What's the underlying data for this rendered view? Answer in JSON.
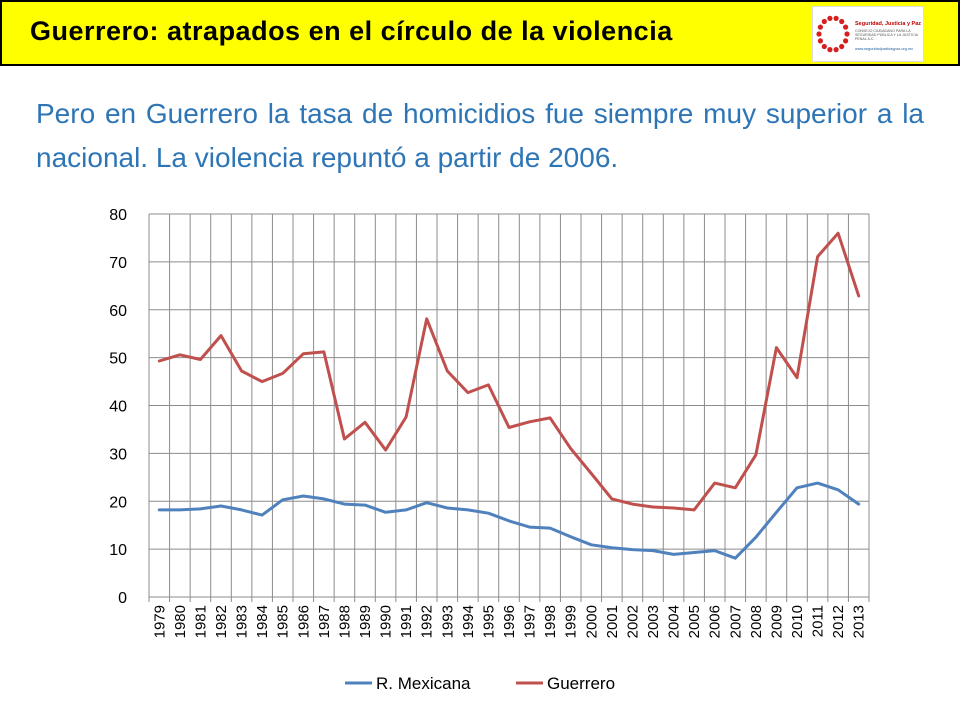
{
  "header": {
    "title": "Guerrero:  atrapados  en  el  círculo  de  la  violencia",
    "logo": {
      "name": "Seguridad, Justicia y Paz",
      "line1": "Seguridad, Justicia y Paz",
      "line2": "CONSEJO CIUDADANO PARA LA SEGURIDAD PÚBLICA Y LA JUSTICIA PENAL A.C.",
      "line3": "www.seguridadjusticiaypaz.org.mx"
    },
    "background_color": "#ffff00"
  },
  "subtitle": "Pero en Guerrero la tasa de homicidios fue siempre muy superior a la nacional. La violencia repuntó a partir de 2006.",
  "chart_data": {
    "type": "line",
    "title": "",
    "xlabel": "",
    "ylabel": "",
    "ylim": [
      0,
      80
    ],
    "yticks": [
      0,
      10,
      20,
      30,
      40,
      50,
      60,
      70,
      80
    ],
    "grid": "vertical and horizontal",
    "legend_position": "bottom",
    "categories": [
      "1979",
      "1980",
      "1981",
      "1982",
      "1983",
      "1984",
      "1985",
      "1986",
      "1987",
      "1988",
      "1989",
      "1990",
      "1991",
      "1992",
      "1993",
      "1994",
      "1995",
      "1996",
      "1997",
      "1998",
      "1999",
      "2000",
      "2001",
      "2002",
      "2003",
      "2004",
      "2005",
      "2006",
      "2007",
      "2008",
      "2009",
      "2010",
      "2011",
      "2012",
      "2013"
    ],
    "series": [
      {
        "name": "R. Mexicana",
        "color": "#4f81bd",
        "values": [
          18.2,
          18.2,
          18.4,
          19.0,
          18.2,
          17.1,
          20.3,
          21.1,
          20.5,
          19.4,
          19.2,
          17.7,
          18.2,
          19.7,
          18.6,
          18.2,
          17.5,
          15.9,
          14.6,
          14.4,
          12.6,
          10.9,
          10.3,
          9.9,
          9.7,
          8.9,
          9.3,
          9.7,
          8.1,
          12.5,
          17.7,
          22.8,
          23.8,
          22.4,
          19.4
        ]
      },
      {
        "name": "Guerrero",
        "color": "#c0504d",
        "values": [
          49.3,
          50.6,
          49.6,
          54.6,
          47.2,
          45.0,
          46.7,
          50.8,
          51.2,
          33.0,
          36.5,
          30.7,
          37.6,
          58.1,
          47.2,
          42.7,
          44.3,
          35.4,
          36.6,
          37.4,
          31.0,
          25.8,
          20.5,
          19.4,
          18.8,
          18.6,
          18.2,
          23.8,
          22.8,
          29.7,
          52.1,
          45.8,
          71.1,
          76.0,
          62.9
        ]
      }
    ]
  }
}
